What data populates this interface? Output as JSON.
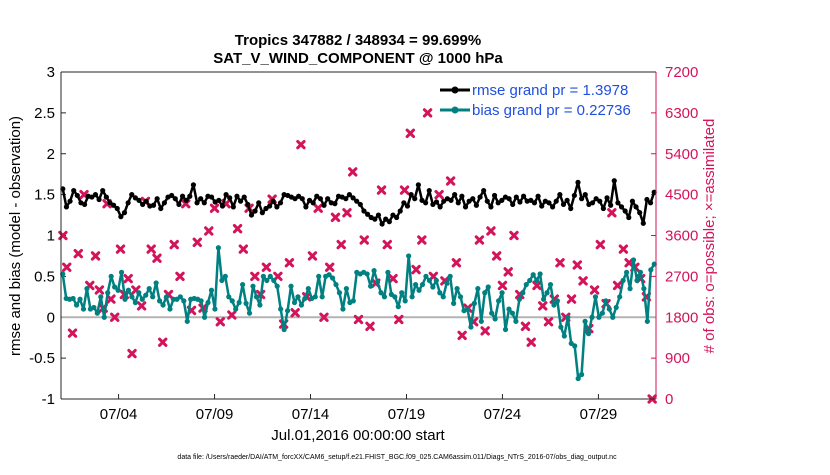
{
  "chart_data": {
    "type": "line",
    "title": [
      "Tropics 347882 / 348934 = 99.699%",
      "SAT_V_WIND_COMPONENT @ 1000 hPa"
    ],
    "xlabel": "Jul.01,2016 00:00:00 start",
    "ylabel": "rmse and bias (model - observation)",
    "y2label": "# of obs: o=possible; ×=assimilated",
    "footnote": "data file: /Users/raeder/DAI/ATM_forcXX/CAM6_setup/f.e21.FHIST_BGC.f09_025.CAM6assim.011/Diags_NTrS_2016-07/obs_diag_output.nc",
    "xlim": [
      1,
      32
    ],
    "xticks": [
      4,
      9,
      14,
      19,
      24,
      29
    ],
    "xtick_labels": [
      "07/04",
      "07/09",
      "07/14",
      "07/19",
      "07/24",
      "07/29"
    ],
    "ylim": [
      -1,
      3
    ],
    "yticks": [
      -1,
      -0.5,
      0,
      0.5,
      1,
      1.5,
      2,
      2.5,
      3
    ],
    "ytick_labels": [
      "-1",
      "-0.5",
      "0",
      "0.5",
      "1",
      "1.5",
      "2",
      "2.5",
      "3"
    ],
    "y2lim": [
      0,
      7200
    ],
    "y2ticks": [
      0,
      900,
      1800,
      2700,
      3600,
      4500,
      5400,
      6300,
      7200
    ],
    "y2tick_labels": [
      "0",
      "900",
      "1800",
      "2700",
      "3600",
      "4500",
      "5400",
      "6300",
      "7200"
    ],
    "zero_line": 0,
    "legend_location": "top-right",
    "colors": {
      "rmse": "#000000",
      "bias": "#008080",
      "obs": "#d4145a",
      "zero": "#b3b3b3"
    },
    "series": [
      {
        "name": "rmse grand pr = 1.3978",
        "axis": "left",
        "values": [
          1.57,
          1.35,
          1.42,
          1.55,
          1.49,
          1.4,
          1.38,
          1.48,
          1.47,
          1.5,
          1.44,
          1.55,
          1.47,
          1.4,
          1.37,
          1.33,
          1.23,
          1.28,
          1.4,
          1.5,
          1.46,
          1.43,
          1.38,
          1.42,
          1.36,
          1.37,
          1.45,
          1.33,
          1.4,
          1.47,
          1.49,
          1.45,
          1.38,
          1.48,
          1.43,
          1.48,
          1.62,
          1.4,
          1.45,
          1.4,
          1.48,
          1.47,
          1.41,
          1.43,
          1.36,
          1.5,
          1.46,
          1.35,
          1.48,
          1.42,
          1.47,
          1.38,
          1.25,
          1.3,
          1.4,
          1.28,
          1.33,
          1.36,
          1.42,
          1.35,
          1.4,
          1.5,
          1.49,
          1.47,
          1.45,
          1.48,
          1.45,
          1.35,
          1.43,
          1.4,
          1.48,
          1.45,
          1.37,
          1.45,
          1.4,
          1.39,
          1.48,
          1.47,
          1.45,
          1.5,
          1.46,
          1.42,
          1.38,
          1.3,
          1.26,
          1.22,
          1.2,
          1.25,
          1.14,
          1.2,
          1.17,
          1.25,
          1.22,
          1.3,
          1.4,
          1.36,
          1.5,
          1.45,
          1.62,
          1.43,
          1.4,
          1.55,
          1.38,
          1.41,
          1.35,
          1.42,
          1.45,
          1.43,
          1.5,
          1.4,
          1.48,
          1.35,
          1.42,
          1.45,
          1.37,
          1.47,
          1.55,
          1.42,
          1.35,
          1.49,
          1.4,
          1.43,
          1.47,
          1.45,
          1.38,
          1.47,
          1.41,
          1.48,
          1.42,
          1.43,
          1.4,
          1.48,
          1.36,
          1.42,
          1.4,
          1.35,
          1.42,
          1.5,
          1.38,
          1.43,
          1.33,
          1.49,
          1.65,
          1.45,
          1.5,
          1.38,
          1.4,
          1.45,
          1.42,
          1.33,
          1.46,
          1.37,
          1.67,
          1.4,
          1.35,
          1.3,
          1.22,
          1.42,
          1.35,
          1.28,
          1.15,
          1.44,
          1.4,
          1.53
        ]
      },
      {
        "name": "bias grand pr = 0.22736",
        "axis": "left",
        "values": [
          0.53,
          0.23,
          0.22,
          0.23,
          0.15,
          0.22,
          0.1,
          0.35,
          0.1,
          0.12,
          0.05,
          0.25,
          0.0,
          0.3,
          0.5,
          0.37,
          0.33,
          0.55,
          0.22,
          0.33,
          0.25,
          0.18,
          0.3,
          0.22,
          0.27,
          0.35,
          0.25,
          0.42,
          0.2,
          0.15,
          0.25,
          0.1,
          0.22,
          0.22,
          0.25,
          0.2,
          -0.05,
          0.22,
          0.23,
          0.22,
          0.2,
          0.0,
          0.18,
          0.33,
          0.1,
          0.85,
          0.45,
          0.5,
          0.25,
          0.2,
          0.1,
          0.18,
          0.4,
          0.17,
          0.05,
          0.38,
          0.25,
          0.15,
          0.5,
          0.45,
          0.5,
          0.45,
          0.38,
          0.1,
          -0.15,
          0.08,
          0.38,
          0.18,
          0.25,
          0.15,
          0.23,
          0.35,
          0.23,
          0.25,
          0.5,
          0.25,
          0.5,
          0.52,
          0.48,
          0.4,
          0.3,
          0.1,
          0.35,
          0.18,
          0.2,
          0.55,
          0.53,
          0.55,
          0.53,
          0.38,
          0.57,
          0.43,
          0.3,
          0.25,
          0.55,
          0.28,
          0.25,
          0.13,
          0.3,
          0.2,
          0.75,
          0.25,
          0.4,
          0.33,
          0.4,
          0.5,
          0.45,
          0.37,
          0.45,
          0.3,
          0.25,
          0.42,
          0.5,
          0.17,
          0.35,
          0.25,
          0.08,
          0.1,
          -0.12,
          0.17,
          0.35,
          -0.05,
          0.3,
          0.37,
          0.05,
          -0.02,
          0.2,
          0.3,
          -0.15,
          0.1,
          0.05,
          -0.05,
          0.22,
          0.3,
          0.4,
          0.45,
          0.52,
          0.45,
          0.53,
          0.22,
          0.3,
          0.4,
          0.15,
          0.2,
          -0.12,
          -0.23,
          0.0,
          -0.32,
          -0.35,
          -0.75,
          -0.7,
          -0.05,
          -0.2,
          0.0,
          0.25,
          0.0,
          0.05,
          0.2,
          0.1,
          0.0,
          0.12,
          0.25,
          0.45,
          0.55,
          0.35,
          0.7,
          0.45,
          0.55,
          0.35,
          -0.05,
          0.58,
          0.65
        ]
      },
      {
        "name": "# of obs assimilated",
        "axis": "right",
        "marker": "x",
        "x": [
          1.1,
          1.3,
          1.6,
          1.9,
          2.2,
          2.5,
          2.8,
          3.0,
          3.2,
          3.4,
          3.6,
          3.8,
          4.1,
          4.3,
          4.5,
          4.7,
          4.9,
          5.2,
          5.4,
          5.7,
          6.0,
          6.3,
          6.6,
          6.9,
          7.2,
          7.5,
          7.8,
          8.1,
          8.4,
          8.7,
          9.0,
          9.3,
          9.6,
          9.9,
          10.2,
          10.5,
          10.8,
          11.1,
          11.4,
          11.7,
          12.0,
          12.3,
          12.6,
          12.9,
          13.2,
          13.5,
          13.8,
          14.1,
          14.4,
          14.7,
          15.0,
          15.3,
          15.6,
          15.9,
          16.2,
          16.5,
          16.8,
          17.1,
          17.4,
          17.7,
          18.0,
          18.3,
          18.6,
          18.9,
          19.2,
          19.5,
          19.8,
          20.1,
          20.4,
          20.7,
          21.0,
          21.3,
          21.6,
          21.9,
          22.2,
          22.5,
          22.8,
          23.1,
          23.4,
          23.7,
          24.0,
          24.3,
          24.6,
          24.9,
          25.2,
          25.5,
          25.8,
          26.1,
          26.4,
          26.7,
          27.0,
          27.3,
          27.6,
          27.9,
          28.2,
          28.5,
          28.8,
          29.1,
          29.4,
          29.7,
          30.0,
          30.3,
          30.6,
          30.9,
          31.2,
          31.5,
          31.8
        ],
        "values": [
          3600,
          2900,
          1450,
          3200,
          4500,
          2500,
          3150,
          2400,
          2000,
          4300,
          2200,
          1800,
          3300,
          2300,
          2650,
          1000,
          2400,
          2050,
          4350,
          3300,
          3100,
          1250,
          2300,
          3400,
          2700,
          4300,
          1950,
          3450,
          2000,
          3700,
          4200,
          1700,
          4300,
          1850,
          3750,
          3300,
          4200,
          2700,
          2300,
          2900,
          4400,
          2700,
          1650,
          3000,
          1900,
          5600,
          2250,
          3150,
          4200,
          1800,
          2900,
          4000,
          3400,
          4100,
          5000,
          1750,
          3500,
          1600,
          2550,
          4600,
          3400,
          2650,
          1750,
          4600,
          5850,
          2850,
          3500,
          6300,
          2700,
          4500,
          2600,
          4800,
          3000,
          1400,
          2000,
          1700,
          3500,
          1500,
          3700,
          3150,
          2500,
          2800,
          3600,
          2300,
          1600,
          1250,
          2500,
          2050,
          1700,
          2200,
          3000,
          1800,
          2200,
          2950,
          2600,
          1550,
          2400,
          3400,
          2100,
          4100,
          2500,
          3300,
          3000,
          2900,
          2650,
          2250,
          0
        ]
      }
    ]
  }
}
